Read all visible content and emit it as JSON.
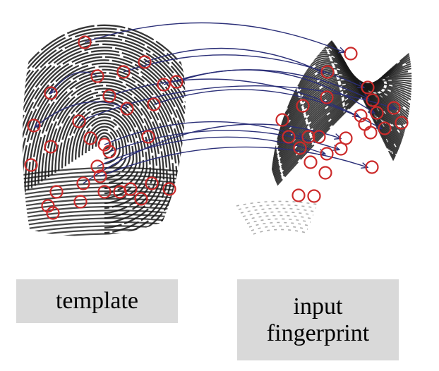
{
  "labels": {
    "template": "template",
    "input_line1": "input",
    "input_line2": "fingerprint"
  },
  "colors": {
    "minutia_circle": "#cc2a2a",
    "match_arrow": "#2b2f78",
    "ridge": "#1a1a1a",
    "label_box": "#d9d9d9"
  },
  "icons": {
    "minutia": "red-circle-marker",
    "correspondence": "curved-arrow"
  }
}
